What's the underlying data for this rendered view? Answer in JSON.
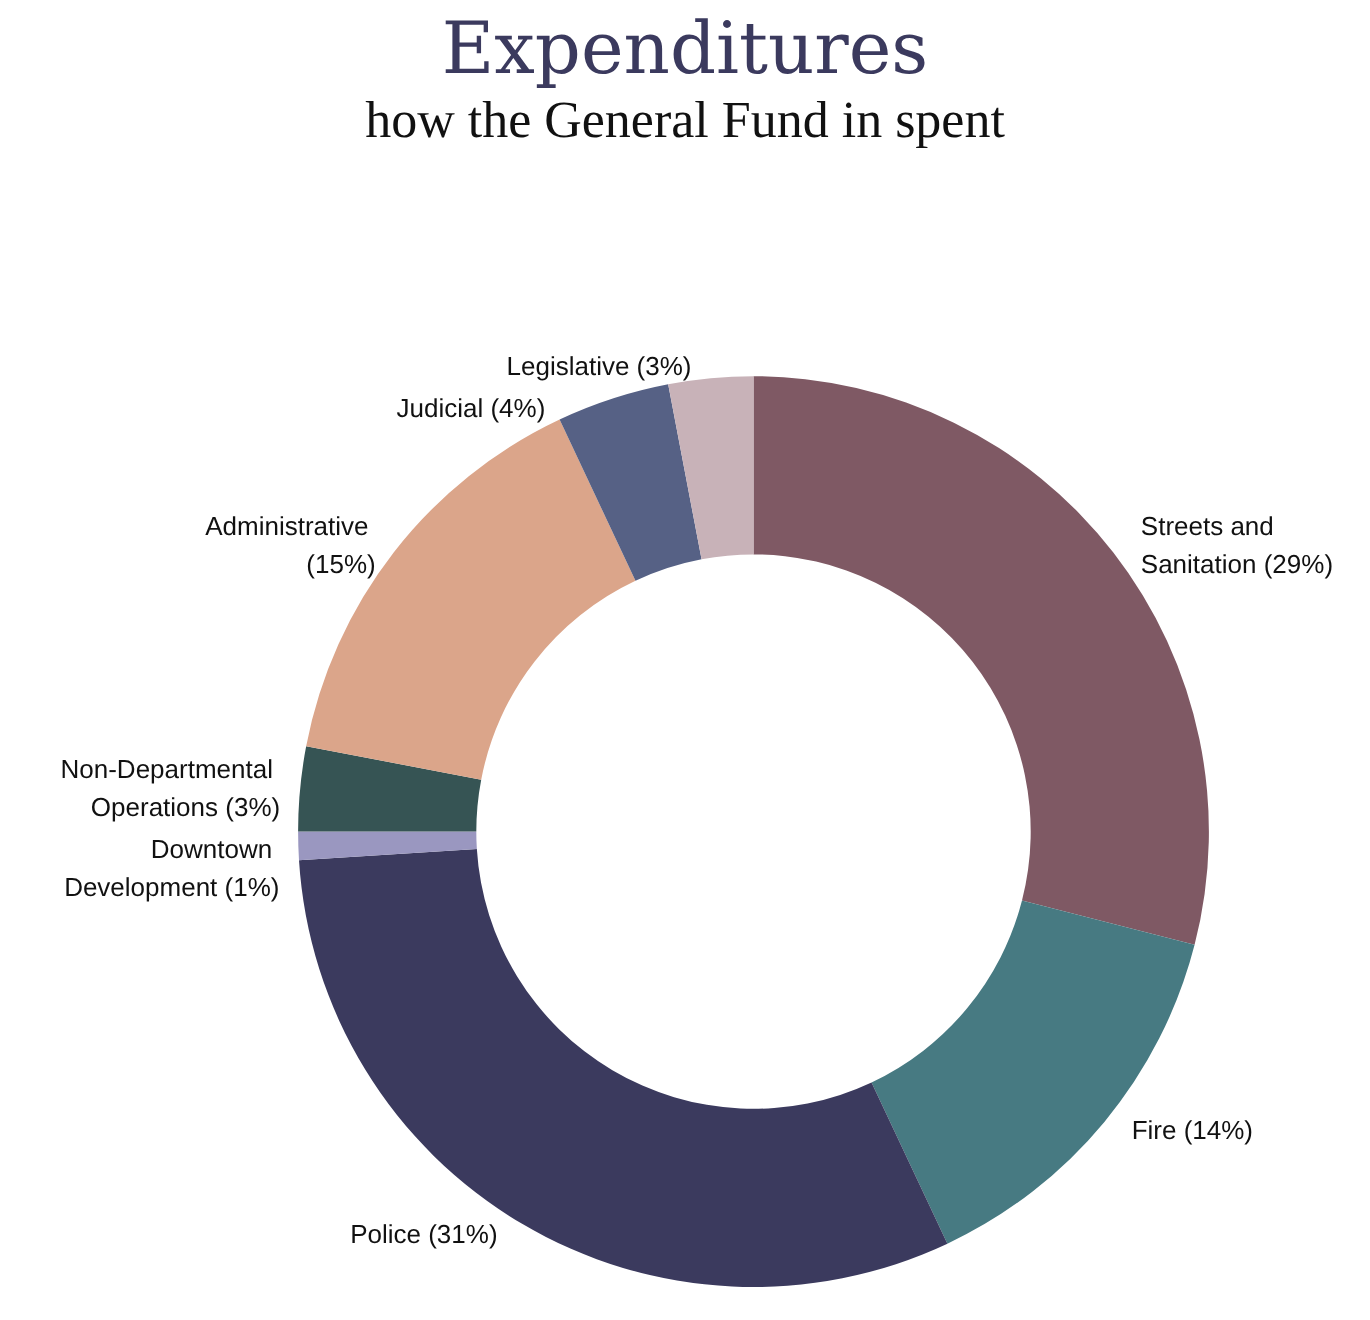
{
  "chart_data": {
    "type": "donut",
    "title": "Expenditures",
    "subtitle": "how the General Fund in spent",
    "categories": [
      "Streets and Sanitation (29%)",
      "Fire (14%)",
      "Police (31%)",
      "Downtown Development (1%)",
      "Non-Departmental Operations (3%)",
      "Administrative (15%)",
      "Judicial (4%)",
      "Legislative (3%)"
    ],
    "values": [
      29,
      14,
      31,
      1,
      3,
      15,
      4,
      3
    ],
    "colors": [
      "#7f5964",
      "#477a82",
      "#3b3a5e",
      "#9a97c0",
      "#365454",
      "#dba58a",
      "#566185",
      "#c8b2b8"
    ],
    "legend": false
  }
}
